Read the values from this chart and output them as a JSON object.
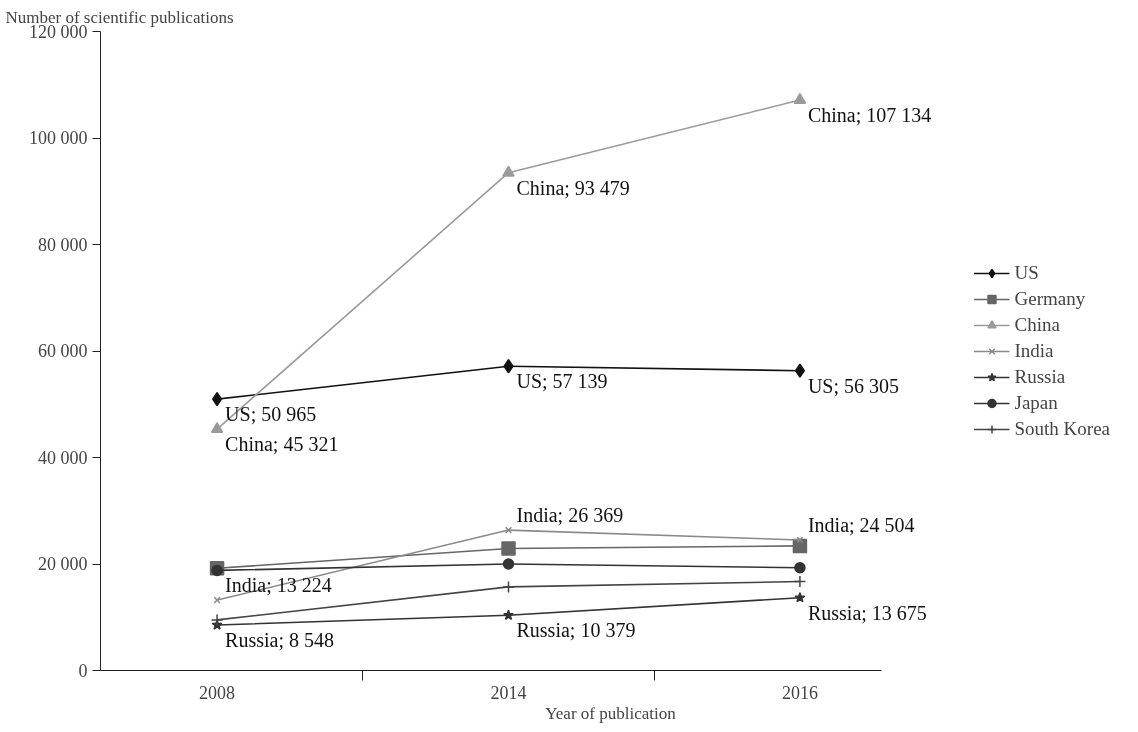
{
  "chart_data": {
    "type": "line",
    "ylabel": "Number of scientific publications",
    "xlabel": "Year of publication",
    "categories": [
      "2008",
      "2014",
      "2016"
    ],
    "ylim": [
      0,
      120000
    ],
    "yticks": [
      {
        "value": 0,
        "label": "0"
      },
      {
        "value": 20000,
        "label": "20 000"
      },
      {
        "value": 40000,
        "label": "40 000"
      },
      {
        "value": 60000,
        "label": "60 000"
      },
      {
        "value": 80000,
        "label": "80 000"
      },
      {
        "value": 100000,
        "label": "100 000"
      },
      {
        "value": 120000,
        "label": "120 000"
      }
    ],
    "grid": false,
    "legend": "right",
    "series": [
      {
        "name": "US",
        "color": "#111111",
        "marker": "diamond",
        "values": [
          50965,
          57139,
          56305
        ],
        "value_labels": [
          "US; 50 965",
          "US; 57 139",
          "US; 56 305"
        ]
      },
      {
        "name": "Germany",
        "color": "#666666",
        "marker": "square",
        "values": [
          19200,
          22900,
          23400
        ]
      },
      {
        "name": "China",
        "color": "#9a9a9a",
        "marker": "triangle",
        "values": [
          45321,
          93479,
          107134
        ],
        "value_labels": [
          "China; 45 321",
          "China; 93 479",
          "China; 107 134"
        ]
      },
      {
        "name": "India",
        "color": "#8a8a8a",
        "marker": "x",
        "values": [
          13224,
          26369,
          24504
        ],
        "value_labels": [
          "India; 13 224",
          "India; 26 369",
          "India; 24 504"
        ]
      },
      {
        "name": "Russia",
        "color": "#333333",
        "marker": "star",
        "values": [
          8548,
          10379,
          13675
        ],
        "value_labels": [
          "Russia; 8 548",
          "Russia; 10 379",
          "Russia; 13 675"
        ]
      },
      {
        "name": "Japan",
        "color": "#333333",
        "marker": "circle",
        "values": [
          18800,
          20000,
          19300
        ]
      },
      {
        "name": "South Korea",
        "color": "#444444",
        "marker": "cross",
        "values": [
          9500,
          15700,
          16700
        ]
      }
    ]
  }
}
